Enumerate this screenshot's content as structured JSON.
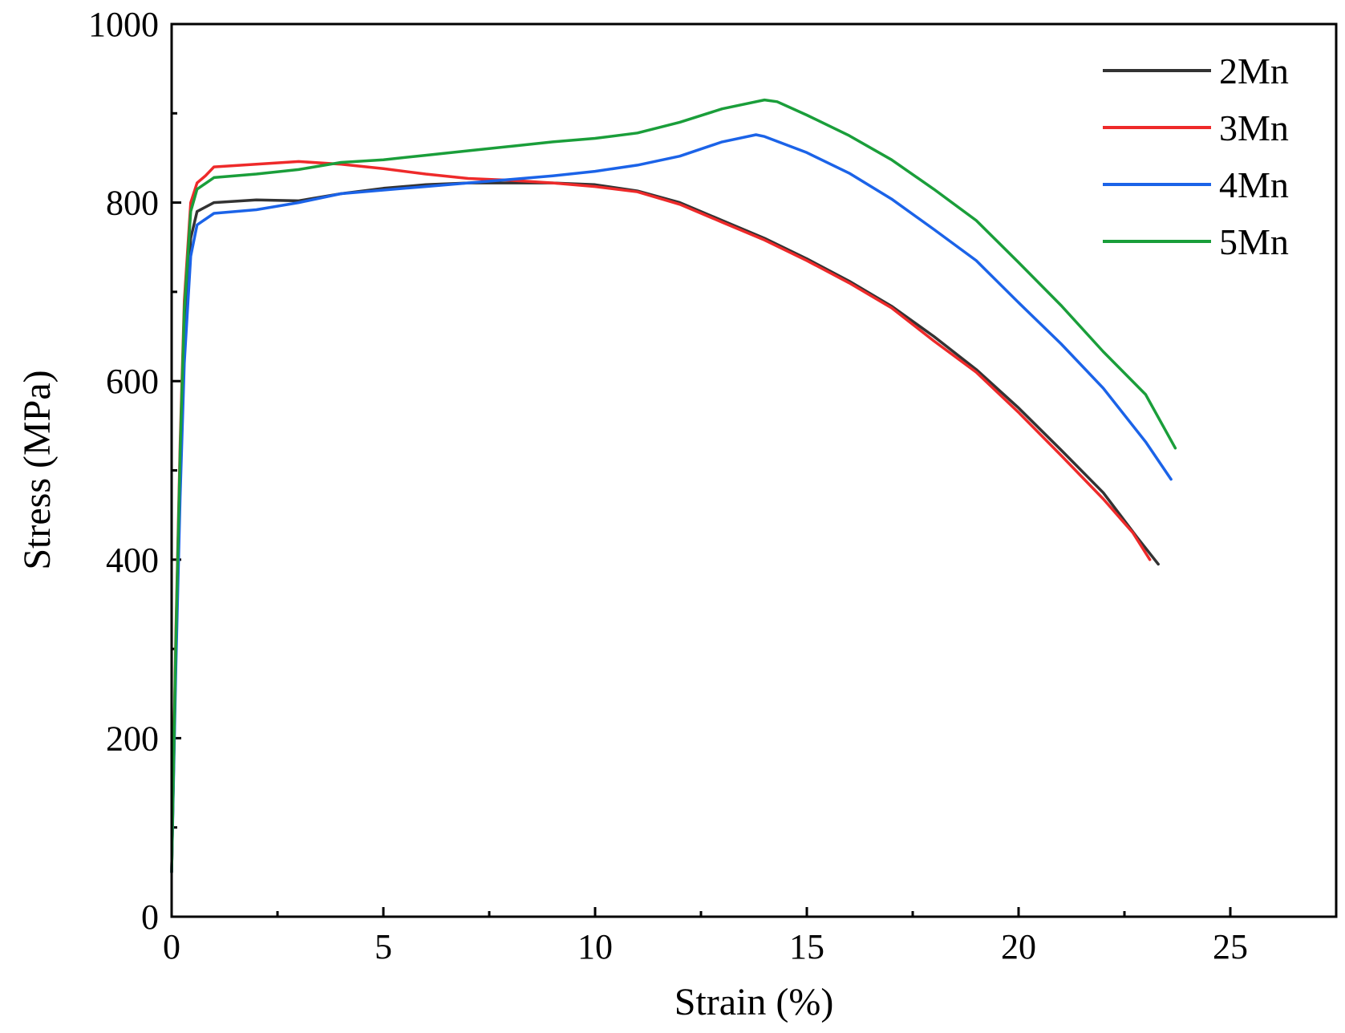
{
  "chart_data": {
    "type": "line",
    "title": "",
    "xlabel": "Strain (%)",
    "ylabel": "Stress (MPa)",
    "xlim": [
      0,
      27.5
    ],
    "ylim": [
      0,
      1000
    ],
    "xticks": [
      0,
      5,
      10,
      15,
      20,
      25
    ],
    "yticks": [
      0,
      200,
      400,
      600,
      800,
      1000
    ],
    "xtick_labels": [
      "0",
      "5",
      "10",
      "15",
      "20",
      "25"
    ],
    "ytick_labels": [
      "0",
      "200",
      "400",
      "600",
      "800",
      "1000"
    ],
    "legend_position": "top-right",
    "grid": false,
    "series": [
      {
        "name": "2Mn",
        "color": "#333333",
        "points": [
          [
            0,
            50
          ],
          [
            0.1,
            300
          ],
          [
            0.2,
            500
          ],
          [
            0.3,
            650
          ],
          [
            0.45,
            760
          ],
          [
            0.6,
            790
          ],
          [
            1,
            800
          ],
          [
            2,
            803
          ],
          [
            3,
            802
          ],
          [
            4,
            810
          ],
          [
            5,
            816
          ],
          [
            6,
            820
          ],
          [
            7,
            822
          ],
          [
            8,
            822
          ],
          [
            9,
            822
          ],
          [
            10,
            820
          ],
          [
            11,
            813
          ],
          [
            12,
            800
          ],
          [
            13,
            780
          ],
          [
            14,
            760
          ],
          [
            15,
            737
          ],
          [
            16,
            712
          ],
          [
            17,
            684
          ],
          [
            18,
            650
          ],
          [
            19,
            613
          ],
          [
            20,
            570
          ],
          [
            21,
            523
          ],
          [
            22,
            475
          ],
          [
            22.8,
            425
          ],
          [
            23.3,
            395
          ]
        ]
      },
      {
        "name": "3Mn",
        "color": "#ee2a2a",
        "points": [
          [
            0,
            50
          ],
          [
            0.1,
            320
          ],
          [
            0.2,
            530
          ],
          [
            0.3,
            690
          ],
          [
            0.45,
            800
          ],
          [
            0.6,
            822
          ],
          [
            0.8,
            830
          ],
          [
            1,
            840
          ],
          [
            2,
            843
          ],
          [
            3,
            846
          ],
          [
            4,
            843
          ],
          [
            5,
            838
          ],
          [
            6,
            832
          ],
          [
            7,
            827
          ],
          [
            8,
            825
          ],
          [
            9,
            822
          ],
          [
            10,
            818
          ],
          [
            11,
            812
          ],
          [
            12,
            798
          ],
          [
            13,
            778
          ],
          [
            14,
            758
          ],
          [
            15,
            735
          ],
          [
            16,
            710
          ],
          [
            17,
            682
          ],
          [
            18,
            645
          ],
          [
            19,
            610
          ],
          [
            20,
            565
          ],
          [
            21,
            517
          ],
          [
            22,
            468
          ],
          [
            22.7,
            430
          ],
          [
            23.1,
            400
          ]
        ]
      },
      {
        "name": "4Mn",
        "color": "#1b63e8",
        "points": [
          [
            0,
            50
          ],
          [
            0.1,
            280
          ],
          [
            0.2,
            470
          ],
          [
            0.3,
            620
          ],
          [
            0.45,
            740
          ],
          [
            0.6,
            775
          ],
          [
            1,
            788
          ],
          [
            2,
            792
          ],
          [
            3,
            800
          ],
          [
            4,
            810
          ],
          [
            5,
            814
          ],
          [
            6,
            818
          ],
          [
            7,
            822
          ],
          [
            8,
            826
          ],
          [
            9,
            830
          ],
          [
            10,
            835
          ],
          [
            11,
            842
          ],
          [
            12,
            852
          ],
          [
            13,
            868
          ],
          [
            13.8,
            876
          ],
          [
            14,
            874
          ],
          [
            15,
            856
          ],
          [
            16,
            833
          ],
          [
            17,
            804
          ],
          [
            18,
            770
          ],
          [
            19,
            735
          ],
          [
            20,
            688
          ],
          [
            21,
            642
          ],
          [
            22,
            592
          ],
          [
            23,
            532
          ],
          [
            23.6,
            490
          ]
        ]
      },
      {
        "name": "5Mn",
        "color": "#1a9e3a",
        "points": [
          [
            0,
            50
          ],
          [
            0.1,
            310
          ],
          [
            0.2,
            520
          ],
          [
            0.3,
            680
          ],
          [
            0.45,
            790
          ],
          [
            0.6,
            815
          ],
          [
            1,
            828
          ],
          [
            2,
            832
          ],
          [
            3,
            837
          ],
          [
            4,
            845
          ],
          [
            5,
            848
          ],
          [
            6,
            853
          ],
          [
            7,
            858
          ],
          [
            8,
            863
          ],
          [
            9,
            868
          ],
          [
            10,
            872
          ],
          [
            11,
            878
          ],
          [
            12,
            890
          ],
          [
            13,
            905
          ],
          [
            14,
            915
          ],
          [
            14.3,
            913
          ],
          [
            15,
            898
          ],
          [
            16,
            875
          ],
          [
            17,
            848
          ],
          [
            18,
            815
          ],
          [
            19,
            780
          ],
          [
            20,
            733
          ],
          [
            21,
            685
          ],
          [
            22,
            633
          ],
          [
            23,
            585
          ],
          [
            23.7,
            525
          ]
        ]
      }
    ]
  }
}
